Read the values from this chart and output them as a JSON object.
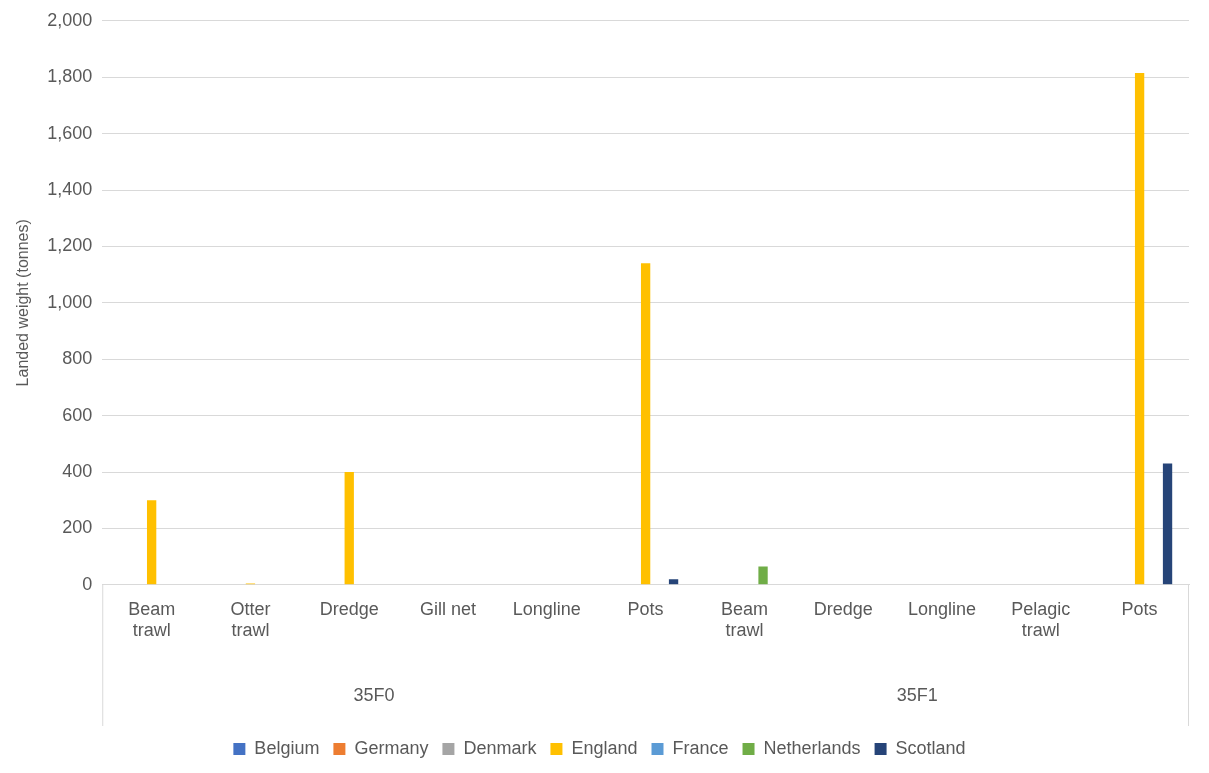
{
  "chart_data": {
    "type": "bar",
    "ylabel": "Landed weight (tonnes)",
    "categories": [
      "Beam trawl",
      "Otter trawl",
      "Dredge",
      "Gill net",
      "Longline",
      "Pots",
      "Beam trawl",
      "Dredge",
      "Longline",
      "Pelagic trawl",
      "Pots"
    ],
    "series": [
      {
        "name": "Belgium",
        "color": "#4472c4",
        "values": [
          0,
          0,
          0,
          0,
          0,
          0,
          0,
          0,
          0,
          0,
          0
        ]
      },
      {
        "name": "Germany",
        "color": "#ed7d31",
        "values": [
          0,
          0,
          0,
          0,
          0,
          0,
          0,
          0,
          0,
          0,
          0
        ]
      },
      {
        "name": "Denmark",
        "color": "#a5a5a5",
        "values": [
          0,
          0,
          0,
          0,
          0,
          0,
          0,
          0,
          0,
          0,
          0
        ]
      },
      {
        "name": "England",
        "color": "#ffc000",
        "values": [
          300,
          5,
          400,
          0,
          0,
          1140,
          0,
          0,
          0,
          0,
          1815
        ]
      },
      {
        "name": "France",
        "color": "#5b9bd5",
        "values": [
          0,
          0,
          0,
          0,
          0,
          0,
          0,
          0,
          0,
          0,
          0
        ]
      },
      {
        "name": "Netherlands",
        "color": "#70ad47",
        "values": [
          0,
          0,
          0,
          0,
          0,
          0,
          65,
          0,
          0,
          0,
          0
        ]
      },
      {
        "name": "Scotland",
        "color": "#264478",
        "values": [
          0,
          0,
          0,
          0,
          0,
          20,
          0,
          0,
          0,
          0,
          430
        ]
      }
    ],
    "ylim": [
      0,
      2000
    ],
    "yticks": [
      {
        "value": 0,
        "label": "0"
      },
      {
        "value": 200,
        "label": "200"
      },
      {
        "value": 400,
        "label": "400"
      },
      {
        "value": 600,
        "label": "600"
      },
      {
        "value": 800,
        "label": "800"
      },
      {
        "value": 1000,
        "label": "1,000"
      },
      {
        "value": 1200,
        "label": "1,200"
      },
      {
        "value": 1400,
        "label": "1,400"
      },
      {
        "value": 1600,
        "label": "1,600"
      },
      {
        "value": 1800,
        "label": "1,800"
      },
      {
        "value": 2000,
        "label": "2,000"
      }
    ],
    "grid": "y",
    "legend": "bottom",
    "annotations": [
      "35F0",
      "35F1"
    ]
  }
}
